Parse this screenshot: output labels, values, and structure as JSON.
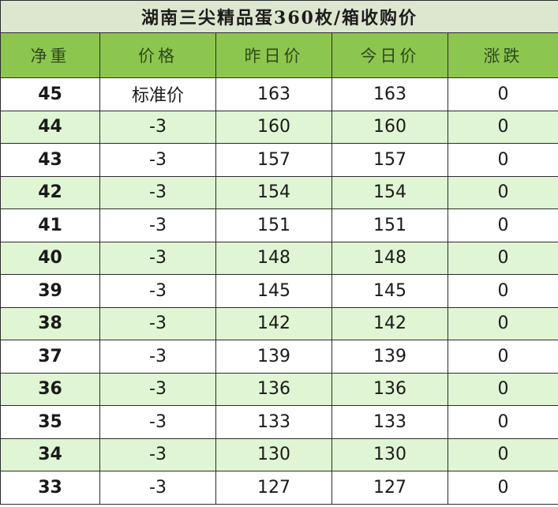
{
  "title": "湖南三尖精品蛋360枚/箱收购价",
  "columns": [
    "净重",
    "价格",
    "昨日价",
    "今日价",
    "涨跌"
  ],
  "rows": [
    [
      "45",
      "标准价",
      "163",
      "163",
      "0"
    ],
    [
      "44",
      "-3",
      "160",
      "160",
      "0"
    ],
    [
      "43",
      "-3",
      "157",
      "157",
      "0"
    ],
    [
      "42",
      "-3",
      "154",
      "154",
      "0"
    ],
    [
      "41",
      "-3",
      "151",
      "151",
      "0"
    ],
    [
      "40",
      "-3",
      "148",
      "148",
      "0"
    ],
    [
      "39",
      "-3",
      "145",
      "145",
      "0"
    ],
    [
      "38",
      "-3",
      "142",
      "142",
      "0"
    ],
    [
      "37",
      "-3",
      "139",
      "139",
      "0"
    ],
    [
      "36",
      "-3",
      "136",
      "136",
      "0"
    ],
    [
      "35",
      "-3",
      "133",
      "133",
      "0"
    ],
    [
      "34",
      "-3",
      "130",
      "130",
      "0"
    ],
    [
      "33",
      "-3",
      "127",
      "127",
      "0"
    ]
  ],
  "colors": {
    "title_bg": "#dde7cf",
    "header_bg": "#8dc64f",
    "alt_row_bg": "#e0f5d4"
  }
}
